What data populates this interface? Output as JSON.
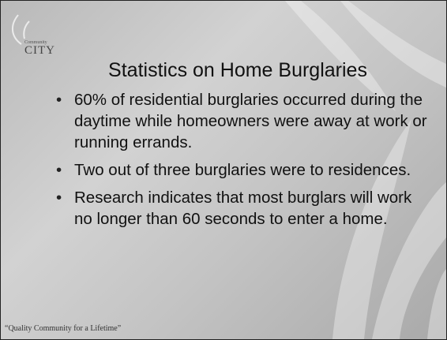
{
  "logo": {
    "small": "Community",
    "name": "CITY"
  },
  "title": "Statistics on Home Burglaries",
  "bullets": [
    "60% of residential burglaries occurred during the daytime while homeowners were away at work or running errands.",
    "Two out of three burglaries were to residences.",
    "Research indicates that most burglars will work no longer than 60 seconds to enter a home."
  ],
  "footer": "“Quality Community for a Lifetime”"
}
